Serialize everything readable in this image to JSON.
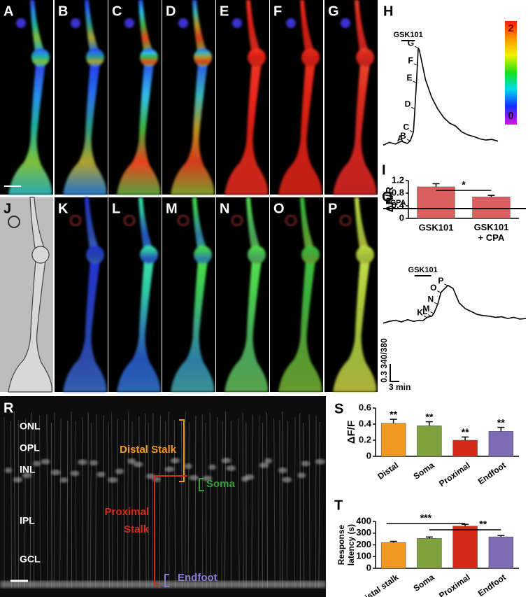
{
  "image_panels": [
    "A",
    "B",
    "C",
    "D",
    "E",
    "F",
    "G",
    "J",
    "K",
    "L",
    "M",
    "N",
    "O",
    "P"
  ],
  "colorbar": {
    "ticks": [
      2,
      0
    ]
  },
  "retina": {
    "panel": "R",
    "layers": [
      "ONL",
      "OPL",
      "INL",
      "IPL",
      "GCL"
    ],
    "distal_stalk": "Distal Stalk",
    "soma": "Soma",
    "proximal_stalk": [
      "Proximal",
      "Stalk"
    ],
    "endfoot": "Endfoot"
  },
  "chart_data": [
    {
      "type": "line",
      "panel": "H",
      "color": "#000000",
      "x": [
        0,
        2,
        4,
        6,
        8,
        9,
        10,
        10.5,
        11,
        11.3,
        11.6,
        12,
        14,
        16,
        18,
        20,
        22,
        24,
        26,
        28,
        30,
        32,
        34,
        36,
        38
      ],
      "values": [
        0.97,
        1.02,
        0.99,
        1.04,
        1.0,
        1.05,
        1.2,
        1.6,
        2.05,
        2.35,
        2.65,
        2.6,
        2.1,
        1.8,
        1.6,
        1.45,
        1.35,
        1.3,
        1.2,
        1.15,
        1.12,
        1.08,
        1.06,
        1.07,
        1.04
      ],
      "point_labels": [
        null,
        null,
        null,
        null,
        "A",
        "B",
        "C",
        "D",
        "E",
        "F",
        "G",
        null,
        null,
        null,
        null,
        null,
        null,
        null,
        null,
        null,
        null,
        null,
        null,
        null,
        null
      ],
      "xlim": [
        0,
        38
      ],
      "ylim": [
        0.88,
        2.99
      ],
      "bars": [
        {
          "label": "GSK101",
          "start": 6,
          "end": 10.5
        }
      ]
    },
    {
      "type": "bar",
      "panel": "I",
      "y_label": "ΔR/R",
      "color": "#d9605f",
      "categories": [
        "GSK101",
        [
          "GSK101",
          "+ CPA"
        ]
      ],
      "values": [
        1.0,
        0.68
      ],
      "errors": [
        0.1,
        0.05
      ],
      "ylim": [
        0,
        1.2
      ],
      "yticks": [
        0,
        0.4,
        0.8,
        1.2
      ],
      "comparisons": [
        {
          "pair": [
            0,
            1
          ],
          "label": "*"
        }
      ]
    },
    {
      "type": "line",
      "panel": "Q",
      "color": "#000000",
      "x": [
        0,
        2,
        4,
        6,
        8,
        10,
        12,
        13,
        14.5,
        16,
        16.7,
        18,
        19,
        21.3,
        23,
        25,
        27,
        29,
        31,
        33,
        35,
        37,
        39,
        41,
        43,
        45,
        47
      ],
      "values": [
        1.0,
        1.03,
        1.05,
        1.02,
        1.06,
        1.03,
        1.05,
        1.04,
        1.1,
        1.12,
        1.17,
        1.33,
        1.53,
        1.65,
        1.6,
        1.35,
        1.25,
        1.2,
        1.15,
        1.13,
        1.12,
        1.1,
        1.11,
        1.08,
        1.1,
        1.07,
        1.08
      ],
      "point_labels": [
        null,
        null,
        null,
        null,
        null,
        null,
        null,
        null,
        "K",
        "L",
        "M",
        "N",
        "O",
        "P",
        null,
        null,
        null,
        null,
        null,
        null,
        null,
        null,
        null,
        null,
        null,
        null,
        null
      ],
      "xlim": [
        0,
        47
      ],
      "ylim": [
        0.9,
        2.95
      ],
      "bars": [
        {
          "label": "CPA",
          "start": 0,
          "end": 47
        },
        {
          "label": "GSK101",
          "start": 10.3,
          "end": 15.8
        }
      ],
      "scale_bar": {
        "y_label": "0.3 340/380",
        "x_label": "3 min"
      }
    },
    {
      "type": "bar",
      "panel": "S",
      "y_label": "ΔF/F",
      "categories": [
        "Distal",
        "Soma",
        "Proximal",
        "Endfoot"
      ],
      "values": [
        0.41,
        0.38,
        0.2,
        0.31
      ],
      "errors": [
        0.05,
        0.05,
        0.04,
        0.05
      ],
      "colors": [
        "#f29a1f",
        "#7fa23c",
        "#d42a1a",
        "#7e6bb5"
      ],
      "stars": [
        "**",
        "**",
        "**",
        "**"
      ],
      "ylim": [
        0,
        0.6
      ],
      "yticks": [
        0,
        0.2,
        0.4,
        0.6
      ]
    },
    {
      "type": "bar",
      "panel": "T",
      "y_label": [
        "Response",
        "latency (s)"
      ],
      "categories": [
        "Distal stalk",
        "Soma",
        "Proximal",
        "Endfoot"
      ],
      "values": [
        220,
        255,
        360,
        268
      ],
      "errors": [
        10,
        12,
        15,
        12
      ],
      "colors": [
        "#f29a1f",
        "#7fa23c",
        "#d42a1a",
        "#7e6bb5"
      ],
      "ylim": [
        0,
        400
      ],
      "yticks": [
        0,
        100,
        200,
        300,
        400
      ],
      "comparisons": [
        {
          "pair": [
            0,
            2
          ],
          "label": "***"
        },
        {
          "pair": [
            1,
            2
          ]
        },
        {
          "pair": [
            2,
            3
          ],
          "label": "**"
        }
      ]
    }
  ]
}
